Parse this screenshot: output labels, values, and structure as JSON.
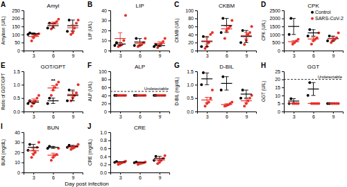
{
  "chart_data": [
    {
      "type": "scatter",
      "panel": "A",
      "title": "Amyl",
      "ylabel": "Amylase (U/L)",
      "categories": [
        "3",
        "6",
        "9"
      ],
      "ylim": [
        0,
        250
      ],
      "yticks": [
        0,
        50,
        100,
        150,
        200,
        250
      ],
      "series": [
        {
          "name": "Control",
          "color": "#000000",
          "values": [
            [
              100,
              110
            ],
            [
              140,
              170
            ],
            [
              120,
              190
            ]
          ],
          "mean": [
            105,
            155,
            155
          ],
          "error": [
            5,
            15,
            35
          ]
        },
        {
          "name": "SARS-CoV-2",
          "color": "#e8302a",
          "values": [
            [
              60,
              80,
              95,
              100,
              105
            ],
            [
              135,
              150,
              170,
              180,
              195
            ],
            [
              100,
              110,
              140,
              170,
              190
            ]
          ],
          "mean": [
            88,
            166,
            142
          ],
          "error": [
            8,
            11,
            17
          ]
        }
      ]
    },
    {
      "type": "scatter",
      "panel": "B",
      "title": "LIP",
      "ylabel": "LIP (U/L)",
      "categories": [
        "3",
        "6",
        "9"
      ],
      "ylim": [
        0,
        40
      ],
      "yticks": [
        0,
        10,
        20,
        30,
        40
      ],
      "series": [
        {
          "name": "Control",
          "color": "#000000",
          "values": [
            [
              5,
              8
            ],
            [
              5,
              12
            ],
            [
              4,
              6
            ]
          ],
          "mean": [
            6.5,
            8.5,
            5
          ],
          "error": [
            1.5,
            3.5,
            1
          ]
        },
        {
          "name": "SARS-CoV-2",
          "color": "#e8302a",
          "values": [
            [
              4,
              5,
              6,
              10,
              35
            ],
            [
              4,
              5,
              6,
              8,
              12
            ],
            [
              3,
              5,
              7,
              9,
              12
            ]
          ],
          "mean": [
            12,
            7,
            7.2
          ],
          "error": [
            5.8,
            1.4,
            1.6
          ]
        }
      ]
    },
    {
      "type": "scatter",
      "panel": "C",
      "title": "CKBM",
      "ylabel": "CKMB (U/L)",
      "categories": [
        "3",
        "6",
        "9"
      ],
      "ylim": [
        0,
        100
      ],
      "yticks": [
        0,
        20,
        40,
        60,
        80,
        100
      ],
      "series": [
        {
          "name": "Control",
          "color": "#000000",
          "values": [
            [
              10,
              35
            ],
            [
              45,
              80
            ],
            [
              20,
              50
            ]
          ],
          "mean": [
            22.5,
            62.5,
            35
          ],
          "error": [
            12.5,
            17.5,
            15
          ]
        },
        {
          "name": "SARS-CoV-2",
          "color": "#e8302a",
          "values": [
            [
              5,
              10,
              20,
              40,
              45
            ],
            [
              30,
              50,
              55,
              60,
              75
            ],
            [
              15,
              25,
              40,
              45,
              60
            ]
          ],
          "mean": [
            24,
            54,
            37
          ],
          "error": [
            8,
            7.3,
            7.9
          ]
        }
      ]
    },
    {
      "type": "scatter",
      "panel": "D",
      "title": "CPK",
      "ylabel": "CPK (U/L)",
      "categories": [
        "3",
        "6",
        "9"
      ],
      "ylim": [
        0,
        2500
      ],
      "yticks": [
        0,
        500,
        1000,
        1500,
        2000,
        2500
      ],
      "legend": "upper right",
      "series": [
        {
          "name": "Control",
          "color": "#000000",
          "values": [
            [
              1000,
              2000
            ],
            [
              900,
              1300
            ],
            [
              600,
              900
            ]
          ],
          "mean": [
            1500,
            1100,
            750
          ],
          "error": [
            500,
            200,
            150
          ]
        },
        {
          "name": "SARS-CoV-2",
          "color": "#e8302a",
          "values": [
            [
              400,
              500,
              600,
              700
            ],
            [
              400,
              600,
              700,
              800,
              1100
            ],
            [
              500,
              600,
              700,
              800,
              1100
            ]
          ],
          "mean": [
            550,
            720,
            740
          ],
          "error": [
            65,
            115,
            100
          ]
        }
      ]
    },
    {
      "type": "scatter",
      "panel": "E",
      "title": "GOT/GPT",
      "ylabel": "Ratio of GOT/GPT",
      "categories": [
        "3",
        "6",
        "9"
      ],
      "ylim": [
        0,
        1.5
      ],
      "yticks": [
        {
          "value": 0,
          "label": "0.0"
        },
        {
          "value": 0.5,
          "label": "0.5"
        },
        {
          "value": 1,
          "label": "1.0"
        },
        {
          "value": 1.5,
          "label": "1.5"
        }
      ],
      "annotations": [
        {
          "text": "**",
          "x": "6",
          "y": 1.22
        }
      ],
      "series": [
        {
          "name": "Control",
          "color": "#000000",
          "values": [
            [
              0.3,
              0.4
            ],
            [
              0.3,
              0.5
            ],
            [
              0.4,
              0.8
            ]
          ],
          "mean": [
            0.35,
            0.4,
            0.6
          ],
          "error": [
            0.05,
            0.1,
            0.2
          ]
        },
        {
          "name": "SARS-CoV-2",
          "color": "#e8302a",
          "values": [
            [
              0.2,
              0.3,
              0.4,
              0.5,
              0.6
            ],
            [
              0.6,
              0.8,
              0.9,
              1.0,
              1.1
            ],
            [
              0.4,
              0.5,
              0.6,
              0.7,
              1.0
            ]
          ],
          "mean": [
            0.4,
            0.88,
            0.64
          ],
          "error": [
            0.07,
            0.09,
            0.1
          ]
        }
      ]
    },
    {
      "type": "scatter",
      "panel": "F",
      "title": "ALP",
      "ylabel": "ALP (U/L)",
      "categories": [
        "3",
        "6",
        "9"
      ],
      "ylim": [
        0,
        100
      ],
      "yticks": [
        0,
        20,
        40,
        60,
        80,
        100
      ],
      "reference_line": {
        "value": 50,
        "label": "Undetectable"
      },
      "series": [
        {
          "name": "Control",
          "color": "#000000",
          "values": [
            [
              40,
              40
            ],
            [
              40,
              40
            ],
            [
              40,
              40
            ]
          ],
          "mean": [
            40,
            40,
            40
          ],
          "error": [
            0,
            0,
            0
          ]
        },
        {
          "name": "SARS-CoV-2",
          "color": "#e8302a",
          "values": [
            [
              40,
              40,
              40,
              40,
              40
            ],
            [
              40,
              40,
              40,
              40,
              40
            ],
            [
              40,
              40,
              40,
              40,
              40
            ]
          ],
          "mean": [
            40,
            40,
            40
          ],
          "error": [
            0,
            0,
            0
          ]
        }
      ]
    },
    {
      "type": "scatter",
      "panel": "G",
      "title": "D-BIL",
      "ylabel": "D-BIL (mg/dL)",
      "categories": [
        "3",
        "6",
        "9"
      ],
      "ylim": [
        0,
        1.5
      ],
      "yticks": [
        {
          "value": 0,
          "label": "0.0"
        },
        {
          "value": 0.5,
          "label": "0.5"
        },
        {
          "value": 1,
          "label": "1.0"
        },
        {
          "value": 1.5,
          "label": "1.5"
        }
      ],
      "series": [
        {
          "name": "Control",
          "color": "#000000",
          "values": [
            [
              1.0,
              1.45
            ],
            [
              0.8,
              1.3
            ],
            [
              0.5,
              0.8
            ]
          ],
          "mean": [
            1.22,
            1.05,
            0.65
          ],
          "error": [
            0.22,
            0.25,
            0.15
          ]
        },
        {
          "name": "SARS-CoV-2",
          "color": "#e8302a",
          "values": [
            [
              0.2,
              0.3,
              0.35,
              0.5,
              0.8
            ],
            [
              0.2,
              0.22,
              0.25,
              0.3,
              0.35
            ],
            [
              0.2,
              0.3,
              0.4,
              0.5,
              0.6
            ]
          ],
          "mean": [
            0.43,
            0.26,
            0.4
          ],
          "error": [
            0.1,
            0.03,
            0.07
          ]
        }
      ]
    },
    {
      "type": "scatter",
      "panel": "H",
      "title": "GGT",
      "ylabel": "GGT (U/L)",
      "categories": [
        "3",
        "6",
        "9"
      ],
      "ylim": [
        0,
        25
      ],
      "yticks": [
        0,
        5,
        10,
        15,
        20,
        25
      ],
      "reference_line": {
        "value": 20,
        "label": "Undetectable"
      },
      "series": [
        {
          "name": "Control",
          "color": "#000000",
          "values": [
            [
              5,
              8
            ],
            [
              10,
              18
            ],
            [
              5,
              5
            ]
          ],
          "mean": [
            6.5,
            14,
            5
          ],
          "error": [
            1.5,
            4,
            0
          ]
        },
        {
          "name": "SARS-CoV-2",
          "color": "#e8302a",
          "values": [
            [
              5,
              5,
              5,
              5
            ],
            [
              5,
              5,
              5,
              5,
              5
            ],
            [
              5,
              5,
              5,
              5,
              5
            ]
          ],
          "mean": [
            5,
            5,
            5
          ],
          "error": [
            0,
            0,
            0
          ]
        }
      ]
    },
    {
      "type": "scatter",
      "panel": "I",
      "title": "BUN",
      "ylabel": "BUN (mg/dL)",
      "categories": [
        "3",
        "6",
        "9"
      ],
      "ylim": [
        0,
        40
      ],
      "yticks": [
        0,
        10,
        20,
        30,
        40
      ],
      "series": [
        {
          "name": "Control",
          "color": "#000000",
          "values": [
            [
              22,
              28
            ],
            [
              24,
              26
            ],
            [
              25,
              27
            ]
          ],
          "mean": [
            25,
            25,
            26
          ],
          "error": [
            3,
            1,
            1
          ]
        },
        {
          "name": "SARS-CoV-2",
          "color": "#e8302a",
          "values": [
            [
              15,
              18,
              20,
              25,
              30
            ],
            [
              12,
              15,
              17,
              18,
              24
            ],
            [
              23,
              24,
              25,
              26,
              28
            ]
          ],
          "mean": [
            21.6,
            17.2,
            25.2
          ],
          "error": [
            2.6,
            2,
            0.9
          ]
        }
      ]
    },
    {
      "type": "scatter",
      "panel": "J",
      "title": "CRE",
      "ylabel": "CRE (mg/dL)",
      "xlabel": "Day post infection",
      "categories": [
        "3",
        "6",
        "9"
      ],
      "ylim": [
        0,
        1.0
      ],
      "yticks": [
        {
          "value": 0,
          "label": "0.0"
        },
        {
          "value": 0.2,
          "label": "0.2"
        },
        {
          "value": 0.4,
          "label": "0.4"
        },
        {
          "value": 0.6,
          "label": "0.6"
        },
        {
          "value": 0.8,
          "label": "0.8"
        },
        {
          "value": 1.0,
          "label": "1.0"
        }
      ],
      "series": [
        {
          "name": "Control",
          "color": "#000000",
          "values": [
            [
              0.25,
              0.27
            ],
            [
              0.24,
              0.26
            ],
            [
              0.3,
              0.4
            ]
          ],
          "mean": [
            0.26,
            0.25,
            0.35
          ],
          "error": [
            0.01,
            0.01,
            0.05
          ]
        },
        {
          "name": "SARS-CoV-2",
          "color": "#e8302a",
          "values": [
            [
              0.2,
              0.22,
              0.24,
              0.26,
              0.28
            ],
            [
              0.2,
              0.22,
              0.23,
              0.24,
              0.26
            ],
            [
              0.22,
              0.25,
              0.3,
              0.35,
              0.42
            ]
          ],
          "mean": [
            0.24,
            0.23,
            0.31
          ],
          "error": [
            0.014,
            0.01,
            0.036
          ]
        }
      ]
    }
  ]
}
